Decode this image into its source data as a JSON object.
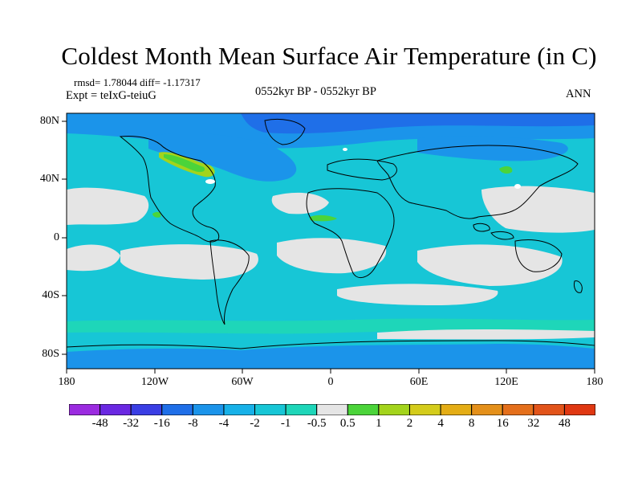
{
  "title": "Coldest Month Mean Surface Air Temperature (in C)",
  "stats": "rmsd= 1.78044 diff= -1.17317",
  "experiment": "Expt = teIxG-teiuG",
  "period": "0552kyr BP - 0552kyr BP",
  "season": "ANN",
  "lat_labels": [
    "80N",
    "40N",
    "0",
    "40S",
    "80S"
  ],
  "lon_labels": [
    "180",
    "120W",
    "60W",
    "0",
    "60E",
    "120E",
    "180"
  ],
  "colorbar": {
    "colors": [
      "#9b2be0",
      "#6a28e2",
      "#3a3ee4",
      "#1f6fe8",
      "#1b94ea",
      "#17b1e8",
      "#17c6d6",
      "#1ed6b9",
      "#e5e5e5",
      "#4bd43a",
      "#a3d41c",
      "#d4cc1b",
      "#e4ad15",
      "#e4901a",
      "#e46f1b",
      "#e2541a",
      "#e03812"
    ],
    "labels": [
      "-48",
      "-32",
      "-16",
      "-8",
      "-4",
      "-2",
      "-1",
      "-0.5",
      "0.5",
      "1",
      "2",
      "4",
      "8",
      "16",
      "32",
      "48"
    ]
  }
}
